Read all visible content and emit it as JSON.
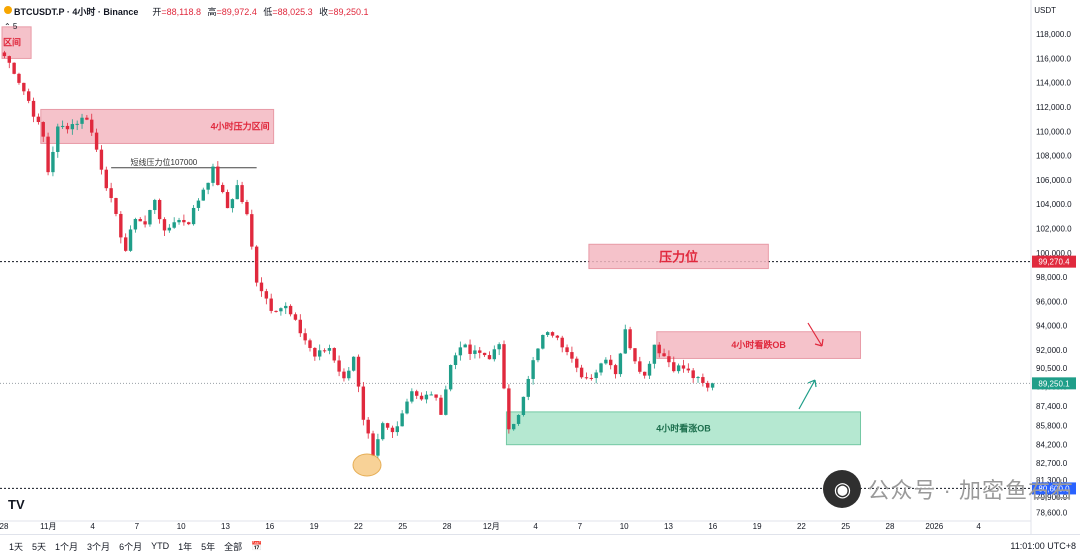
{
  "header": {
    "symbol": "BTCUSDT.P · 4小时 · Binance",
    "open_label": "开",
    "open": "=88,118.8",
    "high_label": "高",
    "high": "=89,972.4",
    "low_label": "低",
    "low": "=88,025.3",
    "close_label": "收",
    "close": "=89,250.1",
    "sub": "⌃ 5"
  },
  "currency": "USDT",
  "timeframes": [
    "1天",
    "5天",
    "1个月",
    "3个月",
    "6个月",
    "YTD",
    "1年",
    "5年",
    "全部"
  ],
  "compare_icon": "calendar-range-icon",
  "utc_time": "11:01:00 UTC+8",
  "watermark": "公众号 · 加密鱼右右",
  "logo": "TV",
  "chart_data": {
    "type": "candlestick",
    "yaxis_ticks": [
      "118,000.0",
      "116,000.0",
      "114,000.0",
      "112,000.0",
      "110,000.0",
      "108,000.0",
      "106,000.0",
      "104,000.0",
      "102,000.0",
      "100,000.0",
      "98,000.0",
      "96,000.0",
      "94,000.0",
      "92,000.0",
      "90,500.0",
      "89,000.0",
      "87,400.0",
      "85,800.0",
      "84,200.0",
      "82,700.0",
      "81,300.0",
      "79,900.0",
      "78,600.0"
    ],
    "ylim": [
      78000,
      119000
    ],
    "xaxis_ticks": [
      "28",
      "11月",
      "4",
      "7",
      "10",
      "13",
      "16",
      "19",
      "22",
      "25",
      "28",
      "12月",
      "4",
      "7",
      "10",
      "13",
      "16",
      "19",
      "22",
      "25",
      "28",
      "2026",
      "4"
    ],
    "close_price": 89250.1,
    "close_price_label": "89,250.1",
    "reference_lines": [
      {
        "price": 99270.4,
        "label": "99,270.4",
        "color": "#e0293d"
      },
      {
        "price": 80600.0,
        "label": "80,600.0",
        "color": "#2962ff"
      }
    ],
    "zones": [
      {
        "label": "区间",
        "type": "resistance",
        "from_bar": 0,
        "to_bar": 5,
        "low": 116000,
        "high": 118600
      },
      {
        "label": "4小时压力区间",
        "type": "resistance",
        "from_bar": 8,
        "to_bar": 55,
        "low": 109000,
        "high": 111800
      },
      {
        "label": "压力位",
        "type": "resistance",
        "from_bar": 121,
        "to_bar": 157,
        "low": 98700,
        "high": 100700
      },
      {
        "label": "4小时看跌OB",
        "type": "resistance",
        "from_bar": 135,
        "to_bar": 176,
        "low": 91300,
        "high": 93500
      },
      {
        "label": "4小时看涨OB",
        "type": "support",
        "from_bar": 104,
        "to_bar": 176,
        "low": 84200,
        "high": 86900
      }
    ],
    "level_annotation": {
      "label": "短线压力位107000",
      "price": 107000,
      "from_bar": 22,
      "to_bar": 52
    },
    "anchors": [
      [
        0,
        116200
      ],
      [
        2,
        115000
      ],
      [
        5,
        112500
      ],
      [
        8,
        109500
      ],
      [
        9,
        106700
      ],
      [
        11,
        110200
      ],
      [
        14,
        110600
      ],
      [
        17,
        111200
      ],
      [
        19,
        108500
      ],
      [
        22,
        104200
      ],
      [
        25,
        100200
      ],
      [
        27,
        103000
      ],
      [
        29,
        102300
      ],
      [
        31,
        104500
      ],
      [
        33,
        101500
      ],
      [
        35,
        102700
      ],
      [
        38,
        102600
      ],
      [
        41,
        105300
      ],
      [
        43,
        106800
      ],
      [
        46,
        103700
      ],
      [
        48,
        105500
      ],
      [
        50,
        103000
      ],
      [
        52,
        97800
      ],
      [
        55,
        95500
      ],
      [
        58,
        95500
      ],
      [
        61,
        93500
      ],
      [
        64,
        91500
      ],
      [
        67,
        92200
      ],
      [
        70,
        89500
      ],
      [
        72,
        91600
      ],
      [
        74,
        86000
      ],
      [
        75,
        84800
      ],
      [
        76,
        83000
      ],
      [
        78,
        85800
      ],
      [
        80,
        85200
      ],
      [
        82,
        86900
      ],
      [
        84,
        88800
      ],
      [
        86,
        87800
      ],
      [
        88,
        88500
      ],
      [
        90,
        87000
      ],
      [
        92,
        90700
      ],
      [
        94,
        92500
      ],
      [
        96,
        91700
      ],
      [
        98,
        91700
      ],
      [
        100,
        91500
      ],
      [
        102,
        92200
      ],
      [
        104,
        85800
      ],
      [
        106,
        86500
      ],
      [
        108,
        89500
      ],
      [
        110,
        92300
      ],
      [
        112,
        93700
      ],
      [
        114,
        93300
      ],
      [
        116,
        91800
      ],
      [
        118,
        90300
      ],
      [
        120,
        89700
      ],
      [
        122,
        90300
      ],
      [
        124,
        91500
      ],
      [
        126,
        90200
      ],
      [
        128,
        93500
      ],
      [
        130,
        91300
      ],
      [
        132,
        89800
      ],
      [
        134,
        92500
      ],
      [
        136,
        91500
      ],
      [
        138,
        90600
      ],
      [
        140,
        90500
      ],
      [
        142,
        89800
      ],
      [
        145,
        88800
      ],
      [
        146,
        89250
      ]
    ],
    "total_bars": 147,
    "annotations": [
      {
        "type": "arrow",
        "direction": "down-right",
        "near": "4小时看跌OB"
      },
      {
        "type": "arrow",
        "direction": "up-right",
        "near": "4小时看涨OB"
      },
      {
        "type": "circle",
        "near_bar": 76,
        "price": 81000
      }
    ]
  },
  "colors": {
    "up": "#1f9e89",
    "down": "#e0293d",
    "resist_fill": "#f4b8c1",
    "resist_text": "#e0293d",
    "support_fill": "#a9e5c9",
    "support_text": "#1b6e4c"
  }
}
